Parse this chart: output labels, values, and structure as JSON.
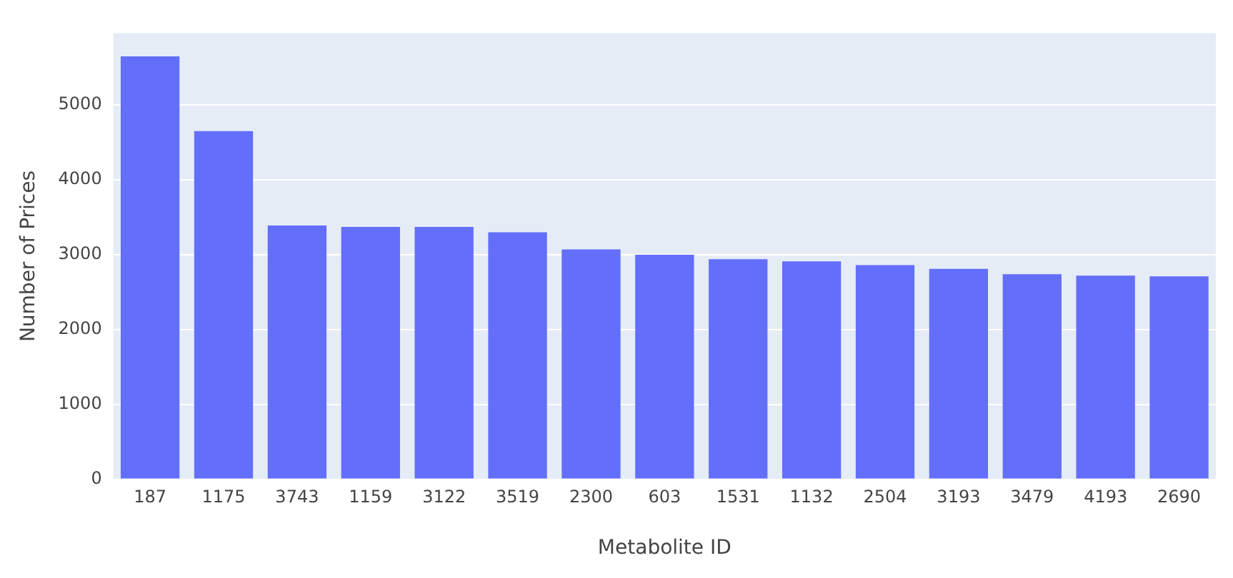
{
  "chart_data": {
    "type": "bar",
    "xlabel": "Metabolite ID",
    "ylabel": "Number of Prices",
    "categories": [
      "187",
      "1175",
      "3743",
      "1159",
      "3122",
      "3519",
      "2300",
      "603",
      "1531",
      "1132",
      "2504",
      "3193",
      "3479",
      "4193",
      "2690"
    ],
    "values": [
      5650,
      4650,
      3390,
      3370,
      3370,
      3300,
      3070,
      3000,
      2940,
      2910,
      2860,
      2810,
      2740,
      2720,
      2710
    ],
    "color": "#636efa",
    "ylim": [
      0,
      5960
    ],
    "yticks": [
      0,
      1000,
      2000,
      3000,
      4000,
      5000
    ],
    "grid": "y"
  }
}
